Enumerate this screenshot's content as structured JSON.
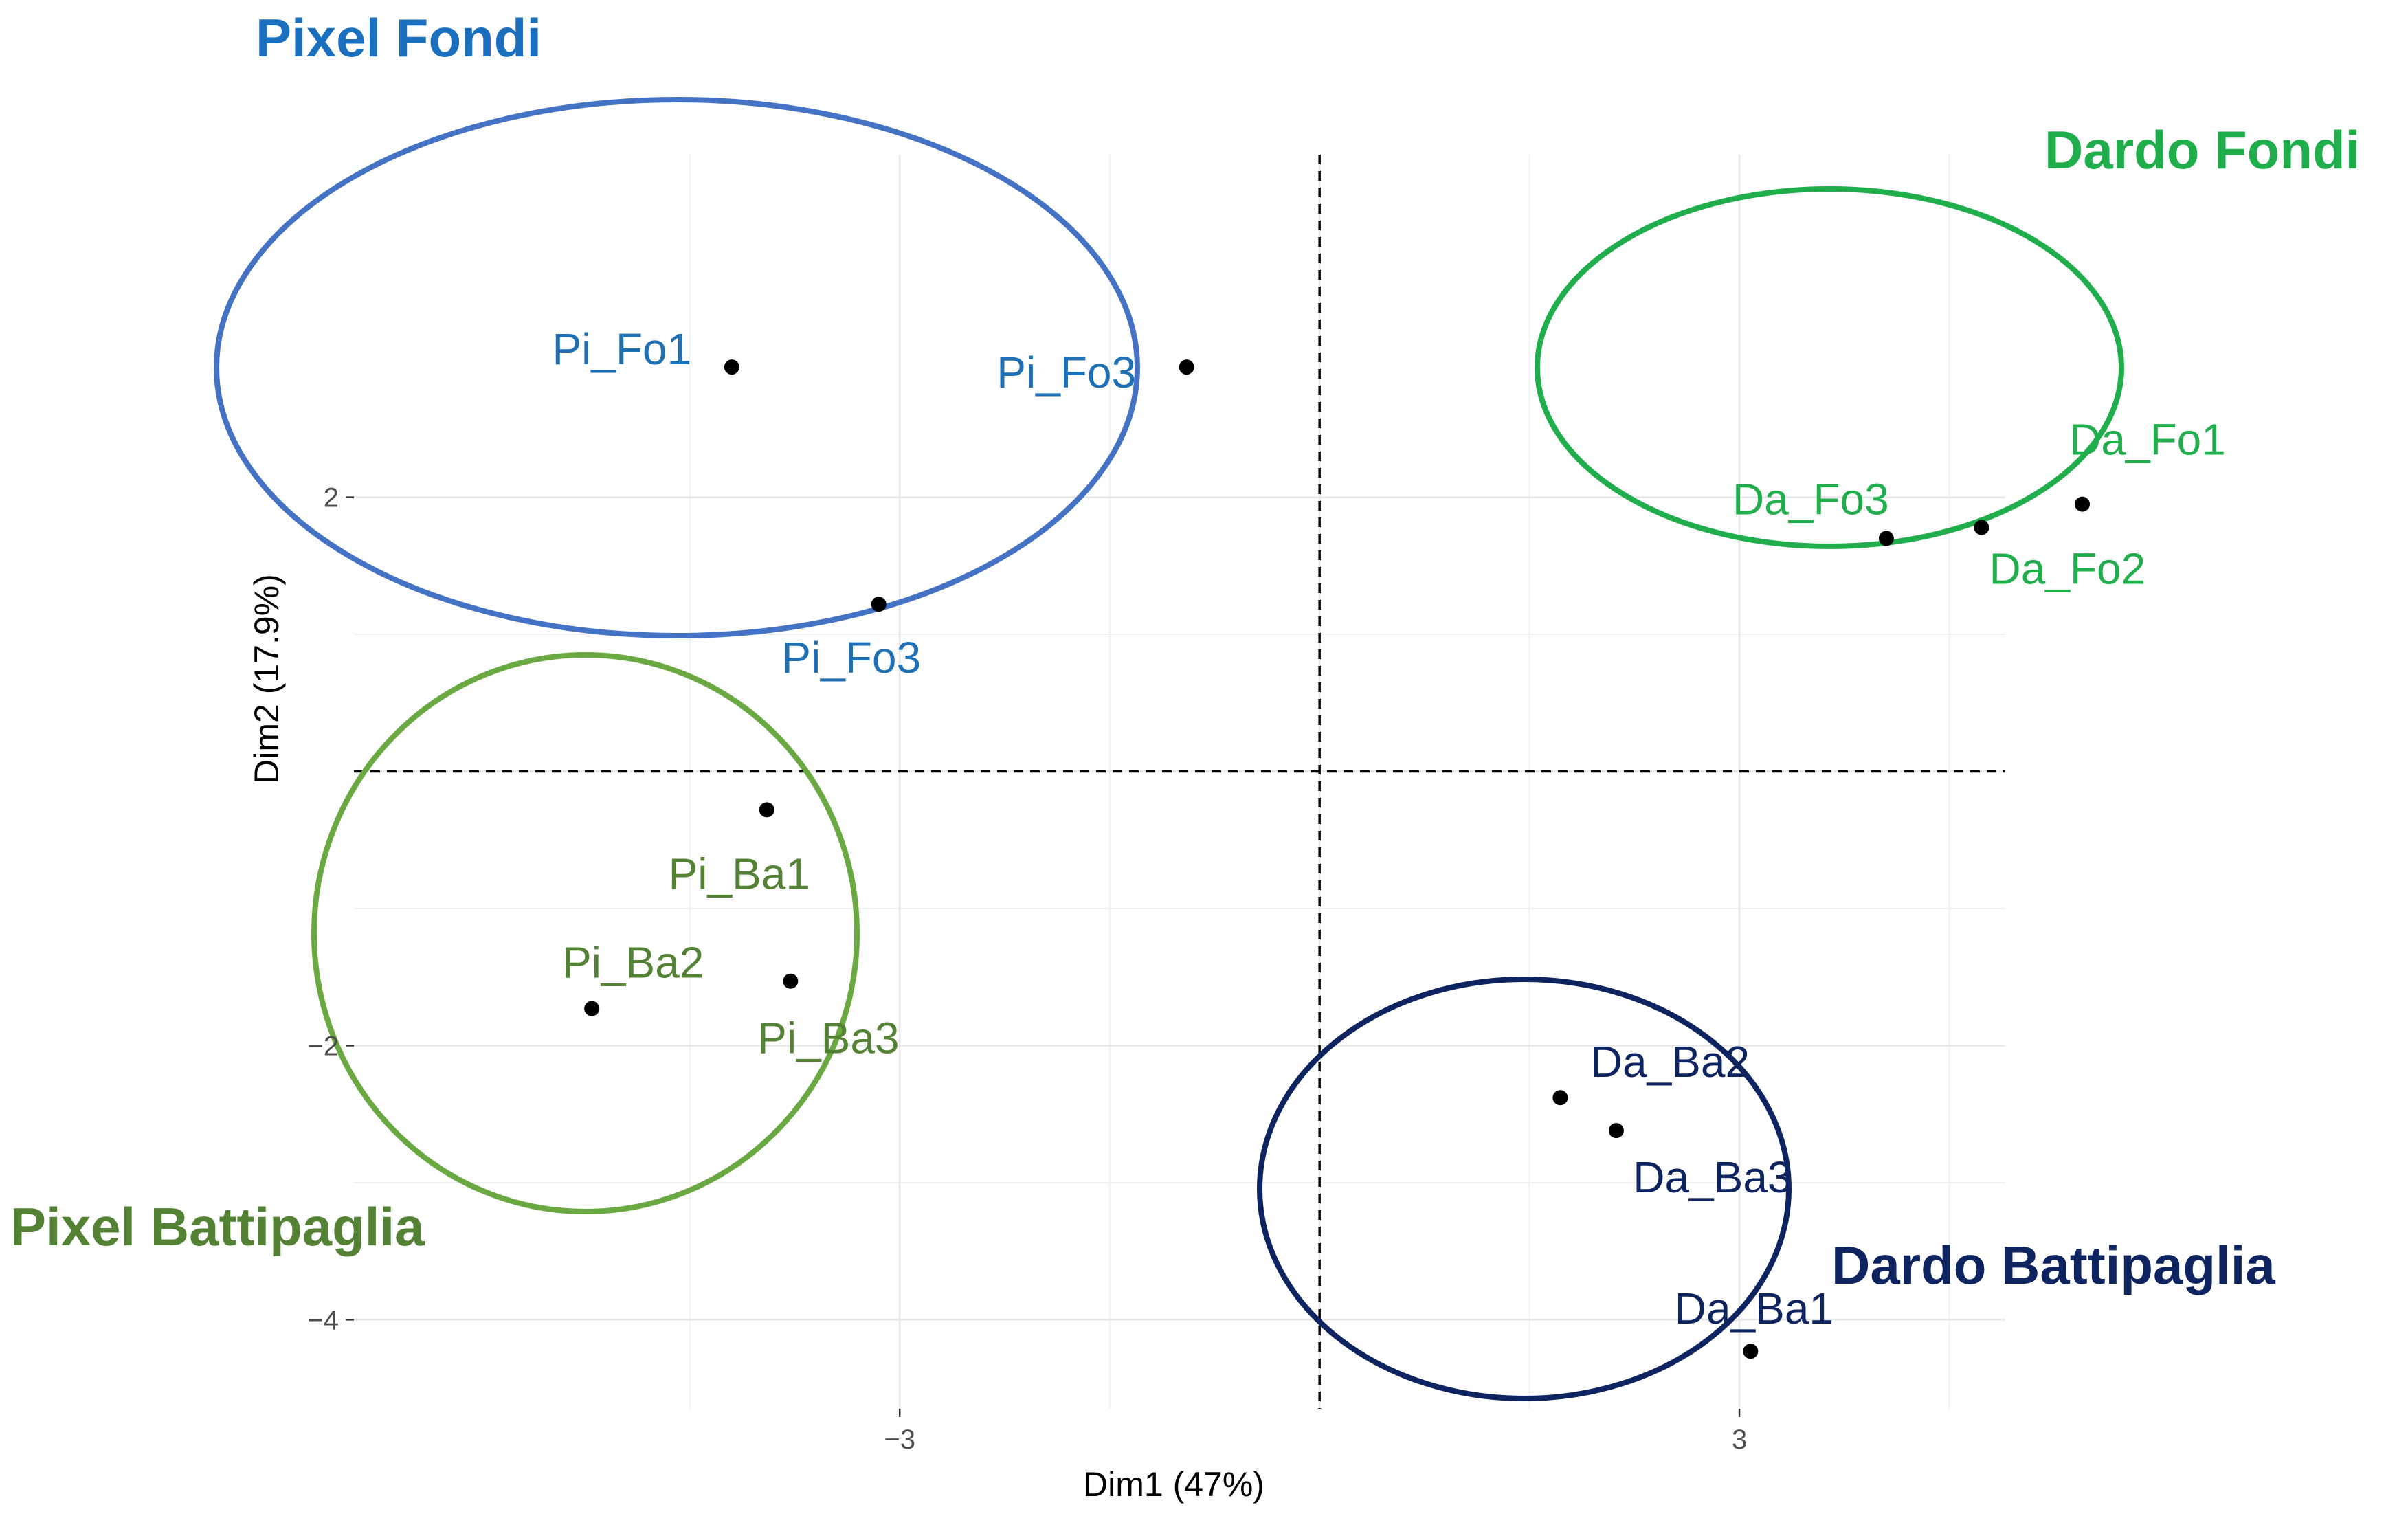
{
  "chart_data": {
    "type": "scatter",
    "xlabel": "Dim1 (47%)",
    "ylabel": "Dim2 (17.9%)",
    "xlim": [
      -6.9,
      4.9
    ],
    "ylim": [
      -4.65,
      4.5
    ],
    "xticks": [
      {
        "value": -3,
        "label": "−3"
      },
      {
        "value": 3,
        "label": "3"
      }
    ],
    "yticks": [
      {
        "value": 2,
        "label": "2"
      },
      {
        "value": -2,
        "label": "−2"
      },
      {
        "value": -4,
        "label": "−4"
      }
    ],
    "x_major_grid": [
      -3,
      0,
      3
    ],
    "x_minor_grid": [
      -4.5,
      -1.5,
      1.5,
      4.5
    ],
    "y_major_grid": [
      2,
      0,
      -2,
      -4
    ],
    "y_minor_grid": [
      1,
      -1,
      -3
    ],
    "reference_lines": {
      "x": 0,
      "y": 0
    },
    "grid": true,
    "points": [
      {
        "label": "Pi_Fo1",
        "x": -4.2,
        "y": 2.95,
        "group": "pixel_fondi"
      },
      {
        "label": "Pi_Fo3",
        "x": -0.95,
        "y": 2.95,
        "group": "pixel_fondi"
      },
      {
        "label": "Pi_Fo3",
        "x": -3.15,
        "y": 1.22,
        "group": "pixel_fondi"
      },
      {
        "label": "Pi_Ba1",
        "x": -3.95,
        "y": -0.28,
        "group": "pixel_battipaglia"
      },
      {
        "label": "Pi_Ba2",
        "x": -5.2,
        "y": -1.73,
        "group": "pixel_battipaglia"
      },
      {
        "label": "Pi_Ba3",
        "x": -3.78,
        "y": -1.53,
        "group": "pixel_battipaglia"
      },
      {
        "label": "Da_Fo1",
        "x": 5.45,
        "y": 1.95,
        "group": "dardo_fondi"
      },
      {
        "label": "Da_Fo2",
        "x": 4.73,
        "y": 1.78,
        "group": "dardo_fondi"
      },
      {
        "label": "Da_Fo3",
        "x": 4.05,
        "y": 1.7,
        "group": "dardo_fondi"
      },
      {
        "label": "Da_Ba2",
        "x": 1.72,
        "y": -2.38,
        "group": "dardo_battipaglia"
      },
      {
        "label": "Da_Ba3",
        "x": 2.12,
        "y": -2.62,
        "group": "dardo_battipaglia"
      },
      {
        "label": "Da_Ba1",
        "x": 3.08,
        "y": -4.23,
        "group": "dardo_battipaglia"
      }
    ],
    "groups": [
      {
        "id": "pixel_fondi",
        "title": "Pixel Fondi",
        "color": "#4472c4",
        "label_color": "#1f6fb5",
        "title_color": "#1a6fbf"
      },
      {
        "id": "dardo_fondi",
        "title": "Dardo Fondi",
        "color": "#1fae4b",
        "label_color": "#1fae4b",
        "title_color": "#1fae4b"
      },
      {
        "id": "pixel_battipaglia",
        "title": "Pixel Battipaglia",
        "color": "#6aa842",
        "label_color": "#548235",
        "title_color": "#548235"
      },
      {
        "id": "dardo_battipaglia",
        "title": "Dardo Battipaglia",
        "color": "#0d2460",
        "label_color": "#0d2460",
        "title_color": "#0d2460"
      }
    ]
  }
}
